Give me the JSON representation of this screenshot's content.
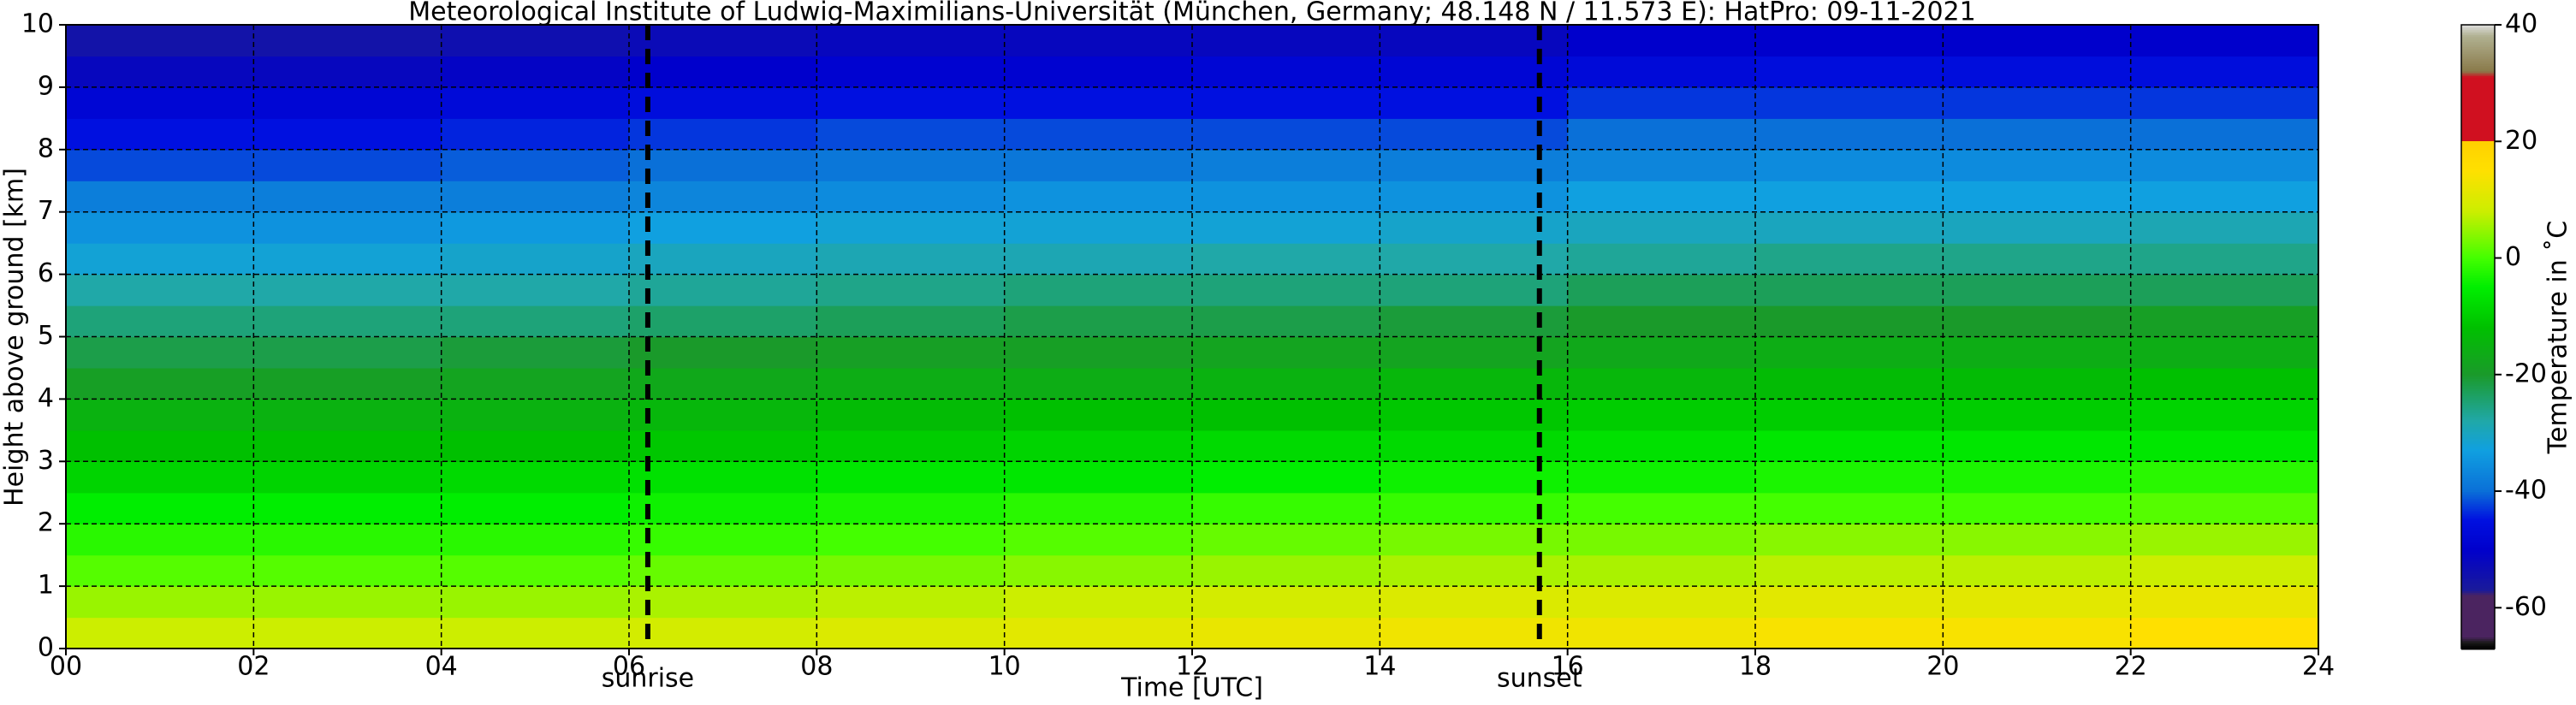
{
  "chart_data": {
    "type": "heatmap",
    "title": "Meteorological Institute of Ludwig-Maximilians-Universität (München, Germany; 48.148 N / 11.573 E):    HatPro: 09-11-2021",
    "x_label": "Time [UTC]",
    "y_label": "Height above ground [km]",
    "colorbar_label": "Temperature in ˚C",
    "xlim": [
      0,
      24
    ],
    "ylim": [
      0,
      10
    ],
    "xticks": [
      {
        "value": 0,
        "label": "00"
      },
      {
        "value": 2,
        "label": "02"
      },
      {
        "value": 4,
        "label": "04"
      },
      {
        "value": 6,
        "label": "06"
      },
      {
        "value": 8,
        "label": "08"
      },
      10,
      12,
      14,
      16,
      18,
      20,
      22,
      24
    ],
    "yticks": [
      0,
      1,
      2,
      3,
      4,
      5,
      6,
      7,
      8,
      9,
      10
    ],
    "grid": true,
    "xbins": [
      0,
      2,
      4,
      6,
      8,
      10,
      12,
      14,
      16,
      18,
      20,
      22,
      24
    ],
    "ybins": [
      0,
      0.5,
      1,
      1.5,
      2,
      2.5,
      3,
      3.5,
      4,
      4.5,
      5,
      5.5,
      6,
      6.5,
      7,
      7.5,
      8,
      8.5,
      9,
      9.5,
      10
    ],
    "values": [
      [
        8,
        5,
        1,
        -2,
        -5,
        -9,
        -12,
        -15,
        -19,
        -22,
        -25,
        -28,
        -32,
        -35,
        -38,
        -42,
        -45,
        -48,
        -52,
        -55
      ],
      [
        8,
        5,
        1,
        -2,
        -5,
        -9,
        -12,
        -15,
        -19,
        -22,
        -25,
        -28,
        -32,
        -35,
        -38,
        -42,
        -45,
        -48,
        -52,
        -55
      ],
      [
        8,
        5,
        1,
        -2,
        -5,
        -8,
        -12,
        -15,
        -18,
        -21,
        -25,
        -28,
        -31,
        -34,
        -38,
        -41,
        -44,
        -47,
        -51,
        -54
      ],
      [
        9,
        6,
        2,
        -1,
        -4,
        -7,
        -11,
        -14,
        -17,
        -20,
        -24,
        -27,
        -30,
        -33,
        -37,
        -40,
        -43,
        -46,
        -50,
        -53
      ],
      [
        10,
        7,
        3,
        0,
        -3,
        -6,
        -10,
        -13,
        -16,
        -19,
        -23,
        -26,
        -29,
        -32,
        -36,
        -39,
        -42,
        -45,
        -49,
        -52
      ],
      [
        11,
        8,
        4,
        1,
        -2,
        -6,
        -9,
        -12,
        -16,
        -19,
        -22,
        -25,
        -29,
        -32,
        -35,
        -39,
        -42,
        -45,
        -49,
        -52
      ],
      [
        12,
        9,
        5,
        2,
        -1,
        -5,
        -8,
        -12,
        -15,
        -18,
        -22,
        -25,
        -28,
        -32,
        -35,
        -38,
        -42,
        -45,
        -48,
        -52
      ],
      [
        13,
        10,
        6,
        3,
        -1,
        -4,
        -8,
        -11,
        -14,
        -18,
        -21,
        -25,
        -28,
        -31,
        -35,
        -38,
        -42,
        -45,
        -48,
        -52
      ],
      [
        13,
        10,
        6,
        3,
        0,
        -4,
        -7,
        -10,
        -14,
        -17,
        -20,
        -23,
        -27,
        -30,
        -33,
        -37,
        -40,
        -43,
        -47,
        -50
      ],
      [
        14,
        11,
        7,
        4,
        0,
        -3,
        -6,
        -10,
        -13,
        -16,
        -20,
        -23,
        -26,
        -30,
        -33,
        -36,
        -40,
        -43,
        -46,
        -50
      ],
      [
        14,
        11,
        7,
        4,
        0,
        -3,
        -6,
        -10,
        -13,
        -16,
        -20,
        -23,
        -26,
        -30,
        -33,
        -36,
        -40,
        -43,
        -46,
        -50
      ],
      [
        15,
        12,
        8,
        5,
        1,
        -2,
        -6,
        -9,
        -12,
        -16,
        -19,
        -23,
        -26,
        -29,
        -33,
        -36,
        -40,
        -43,
        -46,
        -50
      ]
    ],
    "clim": [
      -67,
      40
    ],
    "cticks": [
      -60,
      -40,
      -20,
      0,
      20,
      40
    ],
    "colorscale": [
      [
        -67,
        "#000000"
      ],
      [
        -66,
        "#1a1a1a"
      ],
      [
        -65,
        "#4b2460"
      ],
      [
        -58,
        "#4b2460"
      ],
      [
        -57,
        "#1a1a9a"
      ],
      [
        -50,
        "#0000cc"
      ],
      [
        -45,
        "#0010e0"
      ],
      [
        -40,
        "#0a70d8"
      ],
      [
        -33,
        "#10a0e0"
      ],
      [
        -28,
        "#20a8a8"
      ],
      [
        -20,
        "#1a9a2a"
      ],
      [
        -12,
        "#00c000"
      ],
      [
        -5,
        "#00ee00"
      ],
      [
        0,
        "#44ff00"
      ],
      [
        8,
        "#ccee00"
      ],
      [
        15,
        "#ffe000"
      ],
      [
        20,
        "#ffd000"
      ],
      [
        20.01,
        "#d01020"
      ],
      [
        31,
        "#d01020"
      ],
      [
        32,
        "#8a7a4a"
      ],
      [
        38,
        "#b0b090"
      ],
      [
        40,
        "#e0e0e0"
      ]
    ],
    "annotations": [
      {
        "text": "sunrise",
        "x": 6.2
      },
      {
        "text": "sunset",
        "x": 15.7
      }
    ]
  }
}
